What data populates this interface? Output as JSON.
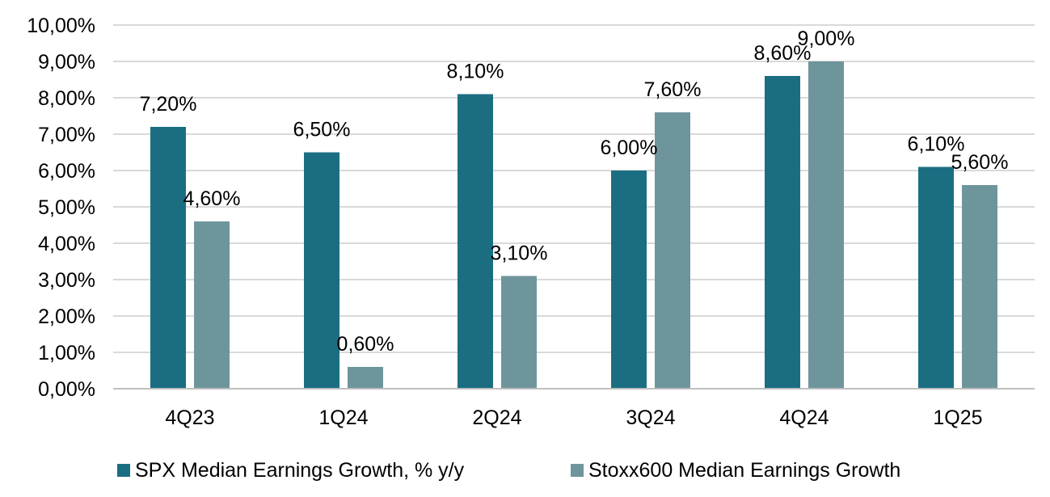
{
  "chart_data": {
    "type": "bar",
    "categories": [
      "4Q23",
      "1Q24",
      "2Q24",
      "3Q24",
      "4Q24",
      "1Q25"
    ],
    "series": [
      {
        "name": "SPX Median Earnings Growth, % y/y",
        "values": [
          7.2,
          6.5,
          8.1,
          6.0,
          8.6,
          6.1
        ],
        "labels": [
          "7,20%",
          "6,50%",
          "8,10%",
          "6,00%",
          "8,60%",
          "6,10%"
        ],
        "color": "#1b6e82"
      },
      {
        "name": "Stoxx600 Median Earnings Growth",
        "values": [
          4.6,
          0.6,
          3.1,
          7.6,
          9.0,
          5.6
        ],
        "labels": [
          "4,60%",
          "0,60%",
          "3,10%",
          "7,60%",
          "9,00%",
          "5,60%"
        ],
        "color": "#6f959c"
      }
    ],
    "ylim": [
      0,
      10
    ],
    "yticks": [
      0,
      1,
      2,
      3,
      4,
      5,
      6,
      7,
      8,
      9,
      10
    ],
    "ytick_labels": [
      "0,00%",
      "1,00%",
      "2,00%",
      "3,00%",
      "4,00%",
      "5,00%",
      "6,00%",
      "7,00%",
      "8,00%",
      "9,00%",
      "10,00%"
    ],
    "title": "",
    "xlabel": "",
    "ylabel": "",
    "grid": true,
    "grid_color": "#d9d9d9",
    "legend_position": "bottom"
  }
}
